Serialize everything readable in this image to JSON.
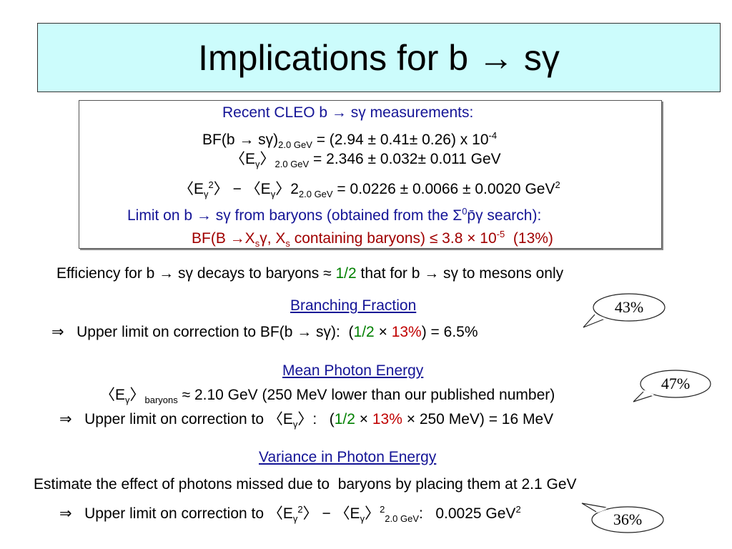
{
  "title": "Implications for b → sγ",
  "box": {
    "lines": [
      [
        "Recent CLEO b → sγ measurements:"
      ],
      [
        "BF(b → sγ)",
        "2.0 GeV",
        " = (2.94 ± 0.41± 0.26) x 10",
        "-4"
      ],
      [
        "〈E",
        "γ",
        "〉",
        "2.0 GeV",
        " = 2.346 ± 0.032± 0.011 GeV"
      ],
      [
        "〈E",
        "γ",
        "2",
        "〉 − 〈E",
        "γ",
        "〉2",
        "2.0 GeV",
        " = 0.0226 ± 0.0066 ± 0.0020 GeV",
        "2"
      ],
      [
        "Limit on b → sγ from baryons (obtained from the Σ",
        "0",
        "p̄γ search):"
      ],
      [
        "BF(B →X",
        "s",
        "γ, X",
        "s",
        " containing baryons) ≤ 3.8 × 10",
        "-5",
        "  (13%)"
      ]
    ]
  },
  "efficiency": [
    "Efficiency for b → sγ decays to baryons ≈ ",
    "1/2",
    " that for b → sγ to mesons only"
  ],
  "branching_fraction": {
    "heading": "Branching Fraction",
    "line": [
      "⇒   Upper limit on correction to BF(b → sγ):  (",
      "1/2",
      " × ",
      "13%",
      ") = 6.5%"
    ],
    "callout": "43%"
  },
  "mean_photon_energy": {
    "heading": "Mean Photon Energy",
    "line1": [
      "〈E",
      "γ",
      "〉",
      "baryons",
      " ≈ 2.10 GeV (250 MeV lower than our published number)"
    ],
    "line2": [
      "⇒   Upper limit on correction to 〈E",
      "γ",
      "〉:   (",
      "1/2",
      " × ",
      "13%",
      " × 250 MeV) = 16 MeV"
    ],
    "callout": "47%"
  },
  "variance": {
    "heading": "Variance in Photon Energy",
    "line1": "Estimate the effect of photons missed due to  baryons by placing them at 2.1 GeV",
    "line2": [
      "⇒   Upper limit on correction to 〈E",
      "γ",
      "2",
      "〉 − 〈E",
      "γ",
      "〉",
      "2",
      "2.0 GeV",
      ":   0.0025 GeV",
      "2"
    ],
    "callout": "36%"
  }
}
